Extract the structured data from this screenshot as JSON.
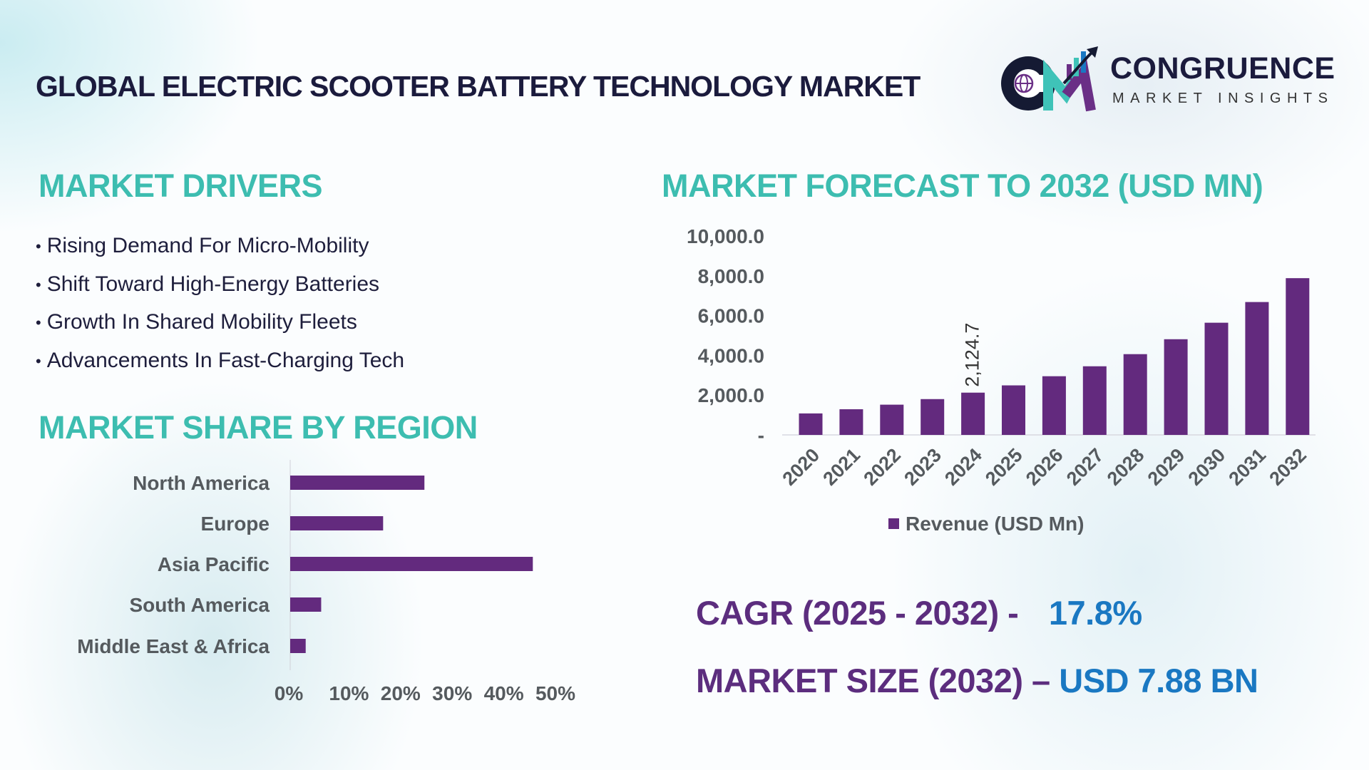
{
  "header": {
    "title": "GLOBAL ELECTRIC SCOOTER BATTERY TECHNOLOGY MARKET"
  },
  "logo": {
    "name": "CONGRUENCE",
    "tagline": "MARKET INSIGHTS"
  },
  "drivers": {
    "heading": "MARKET DRIVERS",
    "items": [
      "Rising Demand For Micro-Mobility",
      "Shift Toward High-Energy Batteries",
      "Growth In Shared Mobility Fleets",
      "Advancements In Fast-Charging Tech"
    ]
  },
  "region": {
    "heading": "MARKET SHARE BY REGION"
  },
  "forecast": {
    "heading": "MARKET FORECAST TO 2032 (USD MN)"
  },
  "kpis": {
    "cagr_label": "CAGR (2025 - 2032) -",
    "cagr_value": "17.8%",
    "size_label": "MARKET SIZE (2032) –",
    "size_value": "USD 7.88 BN"
  },
  "colors": {
    "bar": "#632a7e",
    "heading": "#3dbdb0",
    "kpi_label": "#5c2d7e",
    "kpi_value": "#1a78c2",
    "title": "#1b1b3d"
  },
  "chart_data": [
    {
      "type": "bar",
      "orientation": "horizontal",
      "categories": [
        "North America",
        "Europe",
        "Asia Pacific",
        "South America",
        "Middle East & Africa"
      ],
      "values": [
        26,
        18,
        47,
        6,
        3
      ],
      "unit": "%",
      "xlim": [
        0,
        50
      ],
      "xticks": [
        "0%",
        "10%",
        "20%",
        "30%",
        "40%",
        "50%"
      ],
      "grid": false
    },
    {
      "type": "bar",
      "categories": [
        "2020",
        "2021",
        "2022",
        "2023",
        "2024",
        "2025",
        "2026",
        "2027",
        "2028",
        "2029",
        "2030",
        "2031",
        "2032"
      ],
      "series": [
        {
          "name": "Revenue (USD Mn)",
          "values": [
            1080,
            1290,
            1520,
            1800,
            2124.7,
            2490,
            2950,
            3450,
            4060,
            4810,
            5640,
            6680,
            7880
          ]
        }
      ],
      "data_labels": [
        {
          "category": "2024",
          "text": "2,124.7"
        }
      ],
      "ylim": [
        0,
        10000
      ],
      "yticks": [
        "-",
        "2,000.0",
        "4,000.0",
        "6,000.0",
        "8,000.0",
        "10,000.0"
      ],
      "legend": "bottom",
      "grid": false
    }
  ]
}
